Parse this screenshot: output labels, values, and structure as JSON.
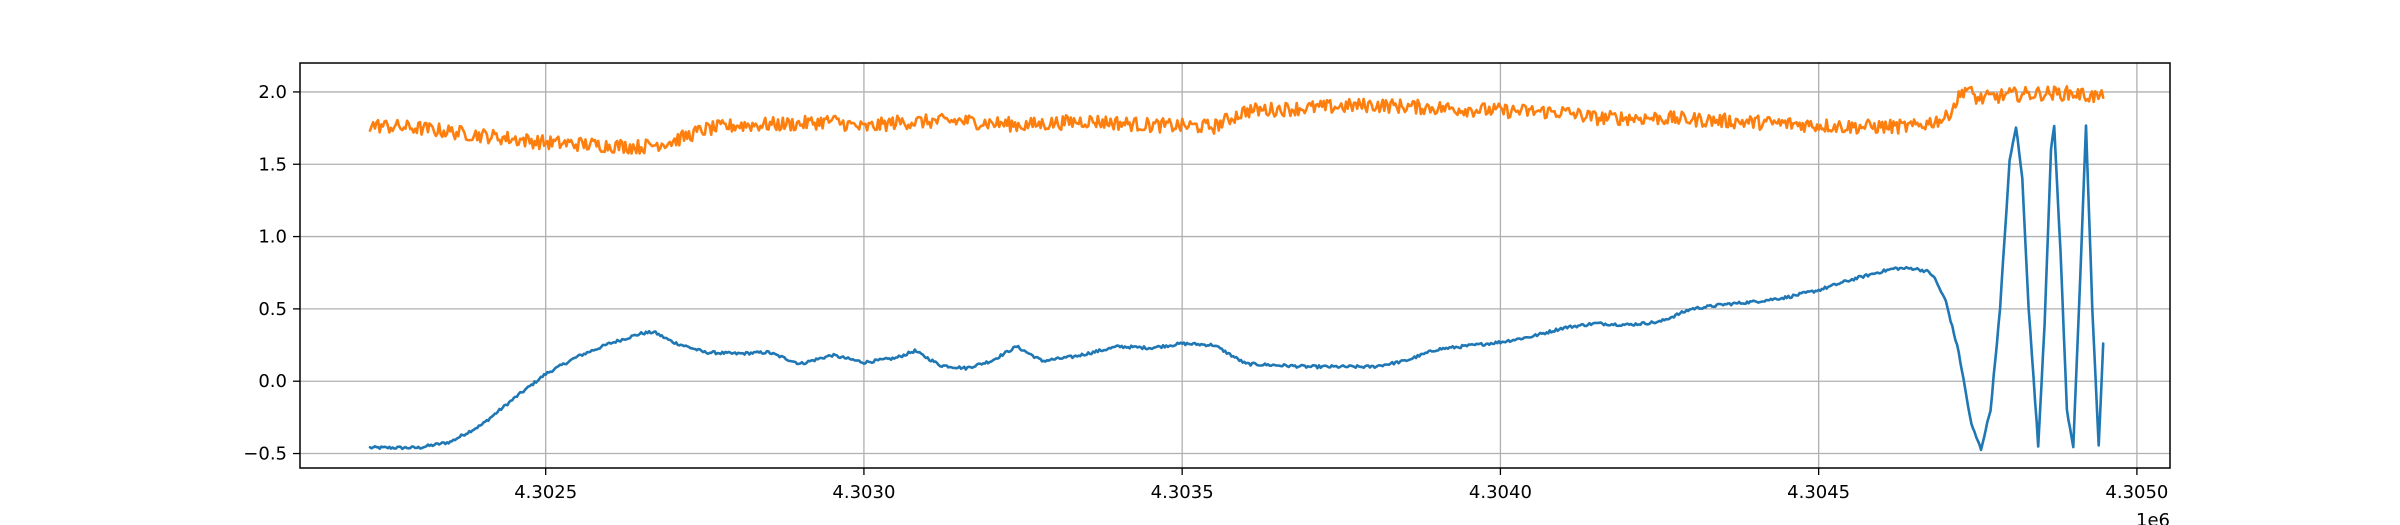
{
  "chart_data": {
    "type": "line",
    "title": "",
    "xlabel": "",
    "ylabel": "",
    "x_offset_label": "1e6",
    "xlim": [
      4302114,
      4305052
    ],
    "ylim": [
      -0.6,
      2.2
    ],
    "x_ticks": [
      {
        "value": 4302500,
        "label": "4.3025"
      },
      {
        "value": 4303000,
        "label": "4.3030"
      },
      {
        "value": 4303500,
        "label": "4.3035"
      },
      {
        "value": 4304000,
        "label": "4.3040"
      },
      {
        "value": 4304500,
        "label": "4.3045"
      },
      {
        "value": 4305000,
        "label": "4.3050"
      }
    ],
    "y_ticks": [
      {
        "value": -0.5,
        "label": "−0.5"
      },
      {
        "value": 0.0,
        "label": "0.0"
      },
      {
        "value": 0.5,
        "label": "0.5"
      },
      {
        "value": 1.0,
        "label": "1.0"
      },
      {
        "value": 1.5,
        "label": "1.5"
      },
      {
        "value": 2.0,
        "label": "2.0"
      }
    ],
    "grid": true,
    "legend": "none",
    "series": [
      {
        "color": "#1f77b4",
        "noise": 0.01,
        "points": [
          [
            4302224,
            -0.46
          ],
          [
            4302300,
            -0.46
          ],
          [
            4302350,
            -0.42
          ],
          [
            4302400,
            -0.3
          ],
          [
            4302450,
            -0.12
          ],
          [
            4302500,
            0.05
          ],
          [
            4302550,
            0.17
          ],
          [
            4302600,
            0.26
          ],
          [
            4302650,
            0.33
          ],
          [
            4302670,
            0.34
          ],
          [
            4302700,
            0.27
          ],
          [
            4302750,
            0.2
          ],
          [
            4302800,
            0.19
          ],
          [
            4302850,
            0.2
          ],
          [
            4302900,
            0.12
          ],
          [
            4302950,
            0.18
          ],
          [
            4302980,
            0.15
          ],
          [
            4303000,
            0.13
          ],
          [
            4303050,
            0.16
          ],
          [
            4303080,
            0.21
          ],
          [
            4303120,
            0.11
          ],
          [
            4303160,
            0.09
          ],
          [
            4303200,
            0.14
          ],
          [
            4303240,
            0.24
          ],
          [
            4303280,
            0.14
          ],
          [
            4303330,
            0.17
          ],
          [
            4303400,
            0.24
          ],
          [
            4303450,
            0.23
          ],
          [
            4303500,
            0.26
          ],
          [
            4303550,
            0.25
          ],
          [
            4303600,
            0.12
          ],
          [
            4303700,
            0.1
          ],
          [
            4303800,
            0.1
          ],
          [
            4303850,
            0.14
          ],
          [
            4303900,
            0.22
          ],
          [
            4304000,
            0.27
          ],
          [
            4304050,
            0.31
          ],
          [
            4304100,
            0.37
          ],
          [
            4304150,
            0.4
          ],
          [
            4304200,
            0.39
          ],
          [
            4304250,
            0.41
          ],
          [
            4304300,
            0.5
          ],
          [
            4304350,
            0.53
          ],
          [
            4304400,
            0.55
          ],
          [
            4304450,
            0.58
          ],
          [
            4304500,
            0.63
          ],
          [
            4304550,
            0.7
          ],
          [
            4304600,
            0.76
          ],
          [
            4304620,
            0.78
          ],
          [
            4304650,
            0.78
          ],
          [
            4304670,
            0.76
          ],
          [
            4304680,
            0.73
          ],
          [
            4304700,
            0.55
          ],
          [
            4304720,
            0.2
          ],
          [
            4304740,
            -0.3
          ],
          [
            4304755,
            -0.47
          ],
          [
            4304770,
            -0.2
          ],
          [
            4304785,
            0.5
          ],
          [
            4304800,
            1.52
          ],
          [
            4304810,
            1.76
          ],
          [
            4304820,
            1.4
          ],
          [
            4304830,
            0.5
          ],
          [
            4304845,
            -0.45
          ],
          [
            4304855,
            0.4
          ],
          [
            4304865,
            1.6
          ],
          [
            4304870,
            1.76
          ],
          [
            4304880,
            0.9
          ],
          [
            4304890,
            -0.2
          ],
          [
            4304900,
            -0.45
          ],
          [
            4304910,
            0.6
          ],
          [
            4304920,
            1.76
          ],
          [
            4304930,
            0.5
          ],
          [
            4304940,
            -0.45
          ],
          [
            4304947,
            0.26
          ]
        ]
      },
      {
        "color": "#ff7f0e",
        "noise": 0.05,
        "points": [
          [
            4302224,
            1.77
          ],
          [
            4302300,
            1.75
          ],
          [
            4302400,
            1.7
          ],
          [
            4302500,
            1.65
          ],
          [
            4302600,
            1.63
          ],
          [
            4302650,
            1.62
          ],
          [
            4302700,
            1.66
          ],
          [
            4302750,
            1.74
          ],
          [
            4302800,
            1.77
          ],
          [
            4302900,
            1.78
          ],
          [
            4302950,
            1.8
          ],
          [
            4303000,
            1.75
          ],
          [
            4303050,
            1.79
          ],
          [
            4303150,
            1.8
          ],
          [
            4303250,
            1.77
          ],
          [
            4303350,
            1.8
          ],
          [
            4303450,
            1.77
          ],
          [
            4303550,
            1.76
          ],
          [
            4303600,
            1.87
          ],
          [
            4303700,
            1.89
          ],
          [
            4303800,
            1.91
          ],
          [
            4303900,
            1.89
          ],
          [
            4304000,
            1.87
          ],
          [
            4304100,
            1.86
          ],
          [
            4304150,
            1.82
          ],
          [
            4304250,
            1.82
          ],
          [
            4304350,
            1.8
          ],
          [
            4304450,
            1.78
          ],
          [
            4304550,
            1.76
          ],
          [
            4304650,
            1.76
          ],
          [
            4304700,
            1.82
          ],
          [
            4304730,
            2.03
          ],
          [
            4304750,
            1.95
          ],
          [
            4304800,
            1.98
          ],
          [
            4304850,
            1.99
          ],
          [
            4304900,
            1.99
          ],
          [
            4304947,
            1.96
          ]
        ]
      }
    ]
  }
}
